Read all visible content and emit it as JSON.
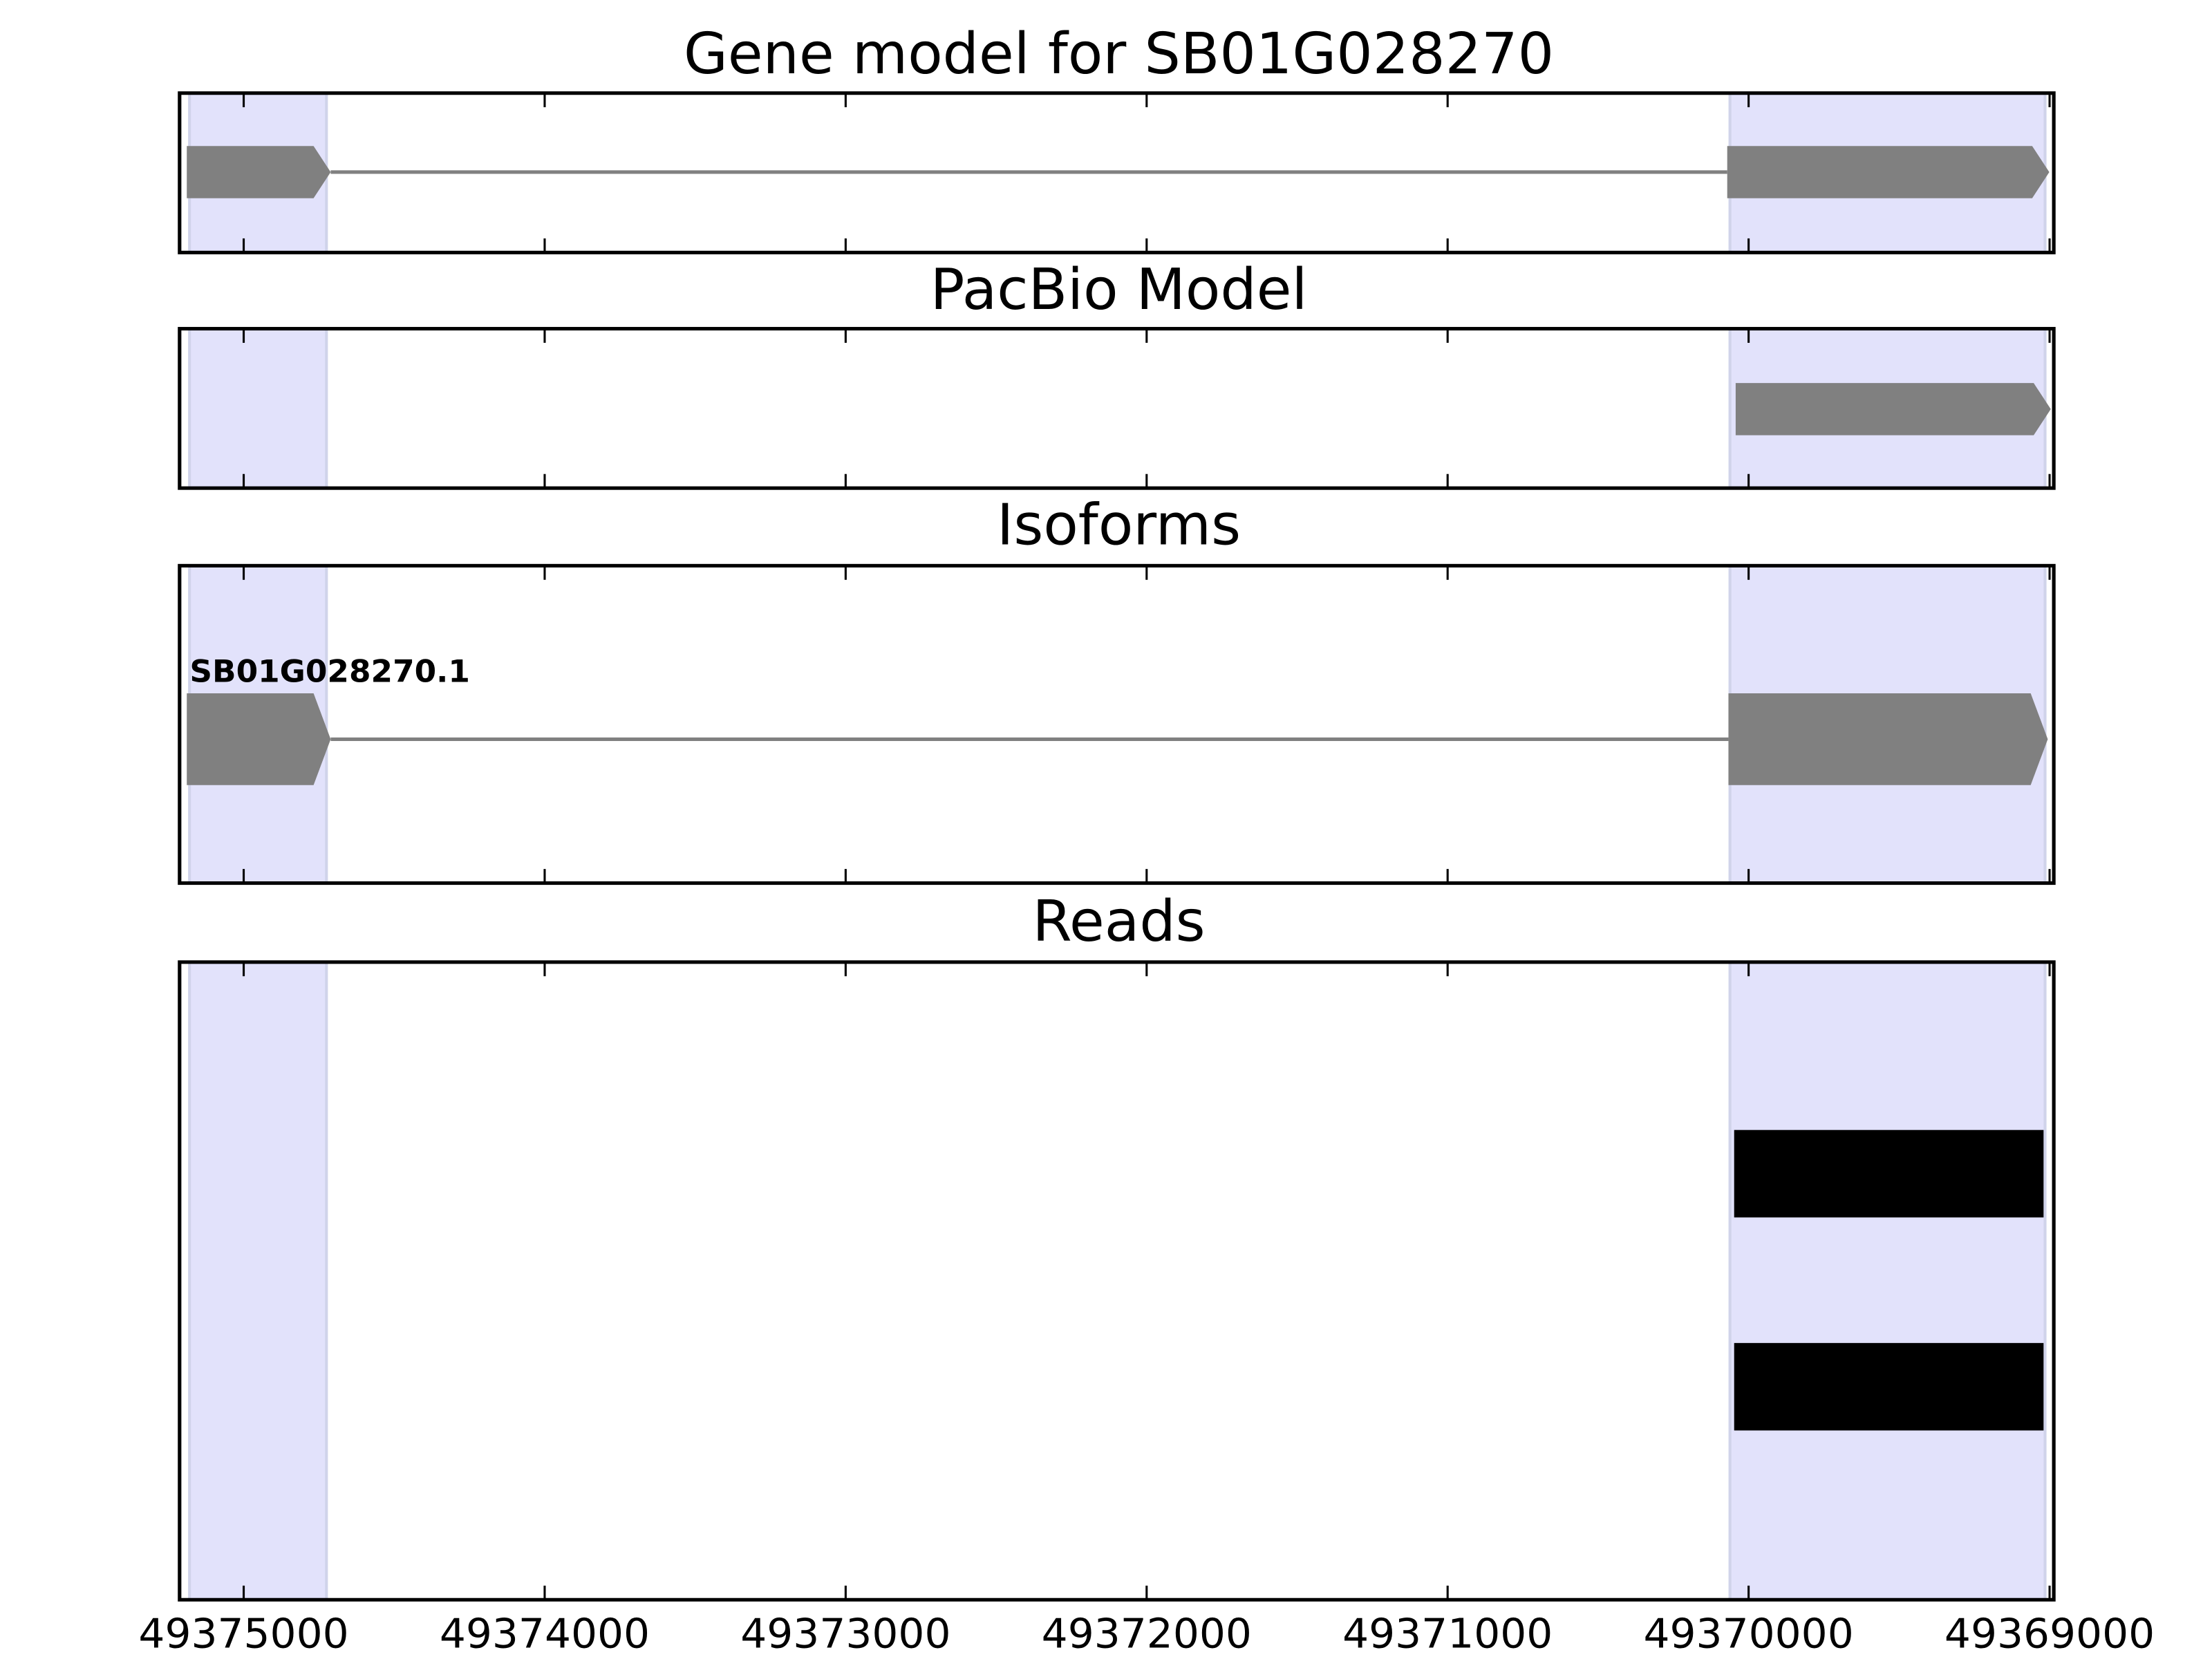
{
  "chart_data": [
    {
      "type": "gene-track",
      "title": "Gene model for SB01G028270",
      "xlim": [
        49375213,
        49368986
      ],
      "xticks": [
        49375000,
        49374000,
        49373000,
        49372000,
        49371000,
        49370000,
        49369000
      ],
      "highlight_color": "#e2e2fb",
      "highlight_regions": [
        [
          49375180,
          49374725
        ],
        [
          49370062,
          49369015
        ]
      ],
      "tracks": [
        {
          "color": "#808080",
          "exons": [
            [
              49375189,
              49374711
            ],
            [
              49370071,
              49369001
            ]
          ]
        }
      ]
    },
    {
      "type": "gene-track",
      "title": "PacBio Model",
      "xlim": [
        49375213,
        49368986
      ],
      "xticks": [
        49375000,
        49374000,
        49373000,
        49372000,
        49371000,
        49370000,
        49369000
      ],
      "highlight_color": "#e2e2fb",
      "highlight_regions": [
        [
          49375180,
          49374725
        ],
        [
          49370062,
          49369015
        ]
      ],
      "tracks": [
        {
          "color": "#808080",
          "exons": [
            [
              49370043,
              49368996
            ]
          ]
        }
      ]
    },
    {
      "type": "gene-track",
      "title": "Isoforms",
      "xlim": [
        49375213,
        49368986
      ],
      "xticks": [
        49375000,
        49374000,
        49373000,
        49372000,
        49371000,
        49370000,
        49369000
      ],
      "highlight_color": "#e2e2fb",
      "highlight_regions": [
        [
          49375180,
          49374725
        ],
        [
          49370062,
          49369015
        ]
      ],
      "tracks": [
        {
          "name": "SB01G028270.1",
          "color": "#808080",
          "exons": [
            [
              49375189,
              49374711
            ],
            [
              49370067,
              49369006
            ]
          ]
        }
      ]
    },
    {
      "type": "reads",
      "title": "Reads",
      "xlim": [
        49375213,
        49368986
      ],
      "xticks": [
        49375000,
        49374000,
        49373000,
        49372000,
        49371000,
        49370000,
        49369000
      ],
      "highlight_color": "#e2e2fb",
      "highlight_regions": [
        [
          49375180,
          49374725
        ],
        [
          49370062,
          49369015
        ]
      ],
      "tracks": [
        {
          "color": "#000000",
          "exons": [
            [
              49370048,
              49369020
            ]
          ]
        },
        {
          "color": "#000000",
          "exons": [
            [
              49370048,
              49369020
            ]
          ]
        }
      ]
    }
  ]
}
